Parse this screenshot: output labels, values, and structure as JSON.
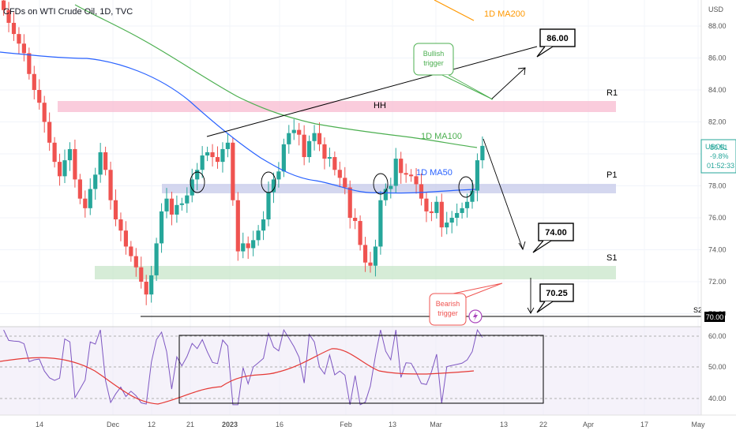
{
  "header": {
    "title": "CFDs on WTI Crude Oil, 1D, TVC",
    "currency": "USD"
  },
  "price_badge": {
    "symbol": "USOIL",
    "price": "80.51",
    "change": "-9.8%",
    "countdown": "01:52:33"
  },
  "level_badge": "70.00",
  "labels": {
    "ma200": "1D MA200",
    "ma100": "1D MA100",
    "ma50": "1D MA50",
    "hh": "HH",
    "r1": "R1",
    "p1": "P1",
    "s1": "S1",
    "s2": "S2",
    "bullish_trigger": [
      "Bullish",
      "trigger"
    ],
    "bearish_trigger": [
      "Bearish",
      "trigger"
    ],
    "target_up": "86.00",
    "target_mid": "74.00",
    "target_down": "70.25"
  },
  "colors": {
    "up": "#26a69a",
    "down": "#ef5350",
    "ma50": "#2962ff",
    "ma100": "#4caf50",
    "ma200": "#ff9800",
    "rsi": "#7e57c2",
    "rsi_ma": "#e53935",
    "resistance_zone": "#f8bbd0",
    "pivot_zone": "#c5cae9",
    "support_zone": "#c8e6c9"
  },
  "chart_data": {
    "type": "candlestick",
    "title": "CFDs on WTI Crude Oil, 1D, TVC",
    "ylabel": "USD",
    "ylim": [
      69,
      89.5
    ],
    "y_ticks": [
      "88.00",
      "86.00",
      "84.00",
      "82.00",
      "80.00",
      "78.00",
      "76.00",
      "74.00",
      "72.00",
      "70.00"
    ],
    "x_ticks": [
      "14",
      "Dec",
      "12",
      "21",
      "2023",
      "16",
      "Feb",
      "13",
      "Mar",
      "13",
      "22",
      "Apr",
      "17",
      "May"
    ],
    "series": [
      {
        "name": "Close",
        "values": [
          89.0,
          88.2,
          87.5,
          86.9,
          86.3,
          85.0,
          84.0,
          83.2,
          82.0,
          80.7,
          79.5,
          78.6,
          79.6,
          80.3,
          78.4,
          77.2,
          76.6,
          77.8,
          78.7,
          80.1,
          79.0,
          77.1,
          75.9,
          75.2,
          74.2,
          73.6,
          72.9,
          72.0,
          71.2,
          72.4,
          74.4,
          76.4,
          77.2,
          76.2,
          76.8,
          76.9,
          77.4,
          78.4,
          79.0,
          79.9,
          80.1,
          79.8,
          79.5,
          80.3,
          80.7,
          77.1,
          73.9,
          74.4,
          74.1,
          74.6,
          75.2,
          75.9,
          77.6,
          78.4,
          78.9,
          80.6,
          81.3,
          81.5,
          81.2,
          79.8,
          80.8,
          81.3,
          80.6,
          79.7,
          79.8,
          79.0,
          78.5,
          77.9,
          76.0,
          75.8,
          74.3,
          73.2,
          73.0,
          74.2,
          77.1,
          77.8,
          78.0,
          79.7,
          78.8,
          78.7,
          78.6,
          78.1,
          77.2,
          76.4,
          76.3,
          77.0,
          75.4,
          75.7,
          76.0,
          76.3,
          76.6,
          77.0,
          77.7,
          79.6,
          80.5
        ]
      }
    ],
    "ma_values": {
      "1D MA50": "approx. 78.0 at latest bar",
      "1D MA100": "approx. 80.7 at latest bar"
    },
    "levels": {
      "R1 zone": [
        82.6,
        83.3
      ],
      "P1 zone": [
        77.7,
        78.2
      ],
      "S1 zone": [
        72.5,
        73.3
      ],
      "S2": 70.0
    },
    "rsi": {
      "name": "RSI",
      "ylim": [
        37,
        63
      ],
      "y_ticks": [
        "60.00",
        "50.00",
        "40.00"
      ]
    },
    "annotations": [
      "1D MA200",
      "1D MA100",
      "1D MA50",
      "HH",
      "R1",
      "P1",
      "S1",
      "S2",
      "Bullish trigger",
      "Bearish trigger",
      "86.00",
      "74.00",
      "70.25"
    ]
  }
}
